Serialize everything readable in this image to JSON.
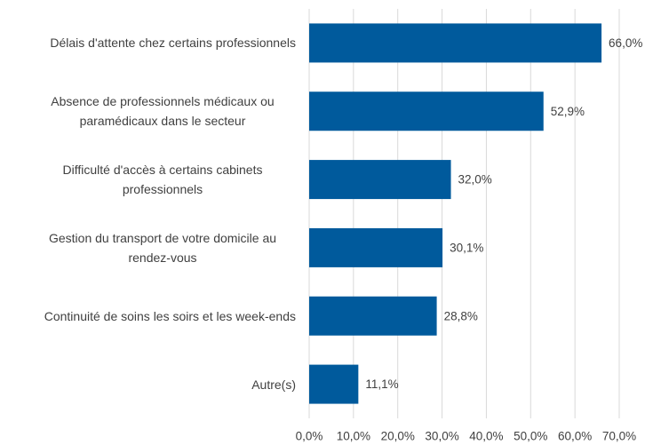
{
  "chart_data": {
    "type": "bar",
    "orientation": "horizontal",
    "categories": [
      "Délais d'attente chez certains professionnels",
      "Absence de professionnels médicaux ou paramédicaux dans le secteur",
      "Difficulté d'accès à certains cabinets professionnels",
      "Gestion du transport de votre domicile au rendez-vous",
      "Continuité de soins les soirs et les week-ends",
      "Autre(s)"
    ],
    "values": [
      66.0,
      52.9,
      32.0,
      30.1,
      28.8,
      11.1
    ],
    "value_labels": [
      "66,0%",
      "52,9%",
      "32,0%",
      "30,1%",
      "28,8%",
      "11,1%"
    ],
    "color": "#005a9c",
    "xlim": [
      0,
      70
    ],
    "xticks": [
      {
        "value": 0,
        "label": "0,0%"
      },
      {
        "value": 10,
        "label": "10,0%"
      },
      {
        "value": 20,
        "label": "20,0%"
      },
      {
        "value": 30,
        "label": "30,0%"
      },
      {
        "value": 40,
        "label": "40,0%"
      },
      {
        "value": 50,
        "label": "50,0%"
      },
      {
        "value": 60,
        "label": "60,0%"
      },
      {
        "value": 70,
        "label": "70,0%"
      }
    ],
    "grid": true
  }
}
